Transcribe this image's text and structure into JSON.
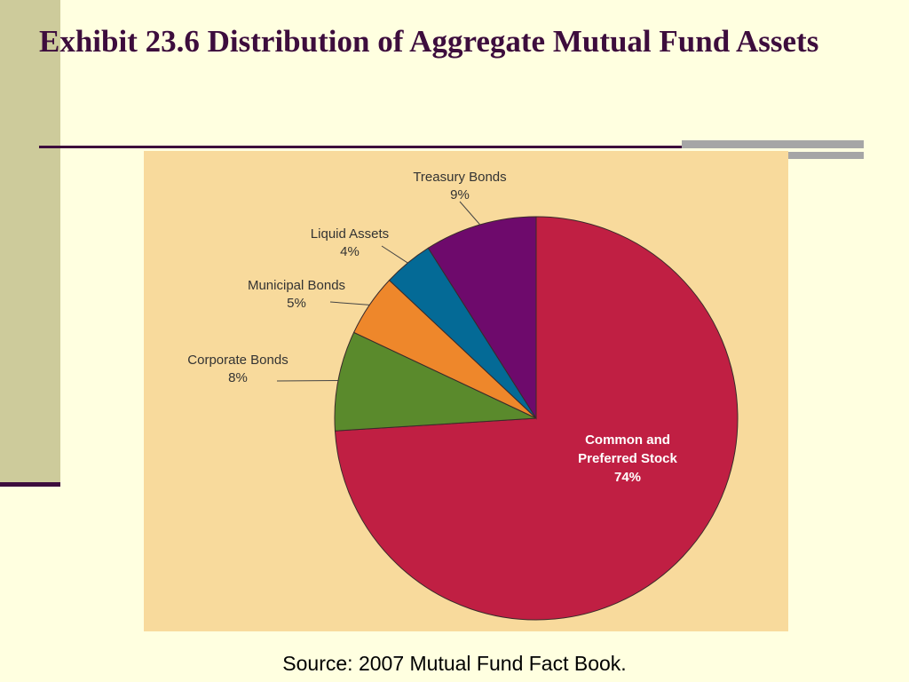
{
  "slide": {
    "title": "Exhibit 23.6 Distribution of Aggregate Mutual Fund Assets",
    "source": "Source: 2007 Mutual Fund Fact Book."
  },
  "chart_data": {
    "type": "pie",
    "title": "",
    "slices": [
      {
        "name": "Common and Preferred Stock",
        "label_lines": [
          "Common and",
          "Preferred Stock"
        ],
        "value": 74,
        "value_label": "74%",
        "color": "#c01f43"
      },
      {
        "name": "Corporate Bonds",
        "label_lines": [
          "Corporate Bonds"
        ],
        "value": 8,
        "value_label": "8%",
        "color": "#5a8a2c"
      },
      {
        "name": "Municipal Bonds",
        "label_lines": [
          "Municipal Bonds"
        ],
        "value": 5,
        "value_label": "5%",
        "color": "#ee872b"
      },
      {
        "name": "Liquid Assets",
        "label_lines": [
          "Liquid Assets"
        ],
        "value": 4,
        "value_label": "4%",
        "color": "#046a96"
      },
      {
        "name": "Treasury Bonds",
        "label_lines": [
          "Treasury Bonds"
        ],
        "value": 9,
        "value_label": "9%",
        "color": "#6e0a6c"
      }
    ],
    "start": "12 o'clock, clockwise",
    "legend": "none; labels beside slices"
  }
}
